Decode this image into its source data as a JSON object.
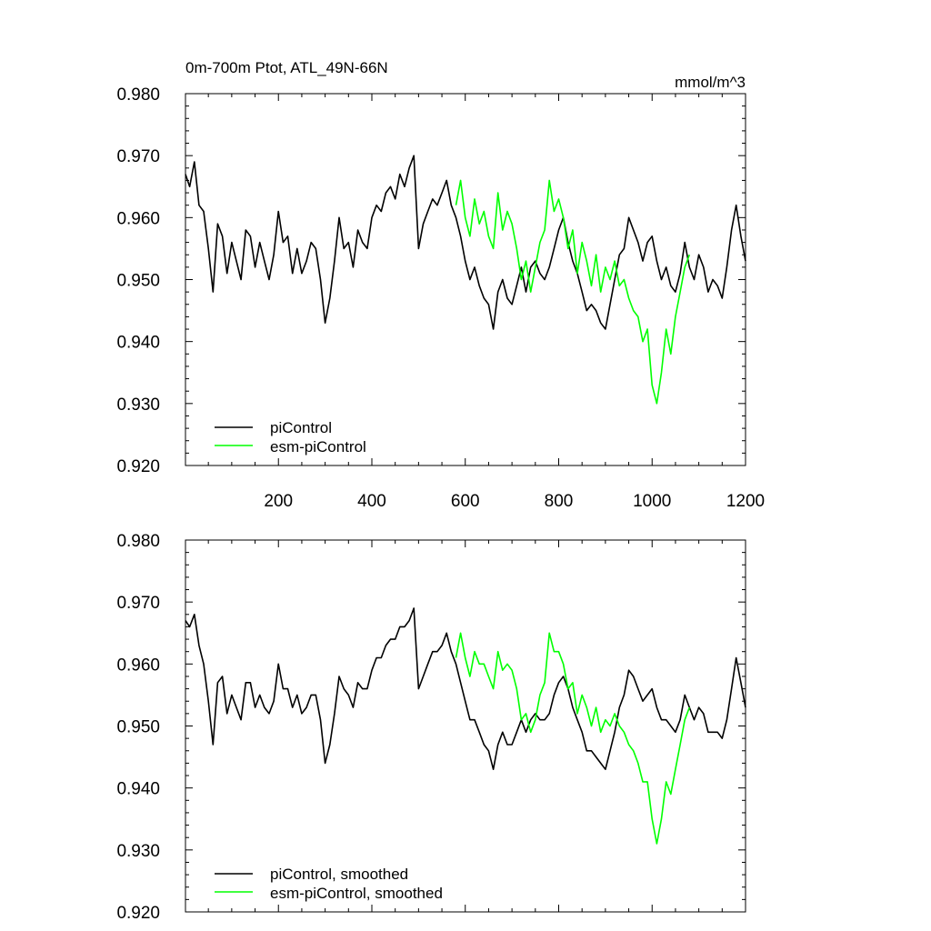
{
  "chart_data": [
    {
      "type": "line",
      "title_left": "0m-700m Ptot, ATL_49N-66N",
      "title_right": "mmol/m^3",
      "xlim": [
        1,
        1200
      ],
      "ylim": [
        0.92,
        0.98
      ],
      "xticks": [
        200,
        400,
        600,
        800,
        1000,
        1200
      ],
      "xtick_labels": [
        "200",
        "400",
        "600",
        "800",
        "1000",
        "1200"
      ],
      "yticks": [
        0.92,
        0.93,
        0.94,
        0.95,
        0.96,
        0.97,
        0.98
      ],
      "ytick_labels": [
        "0.920",
        "0.930",
        "0.940",
        "0.950",
        "0.960",
        "0.970",
        "0.980"
      ],
      "series": [
        {
          "name": "piControl",
          "color": "#000000",
          "x": [
            1,
            10,
            20,
            30,
            40,
            50,
            60,
            70,
            80,
            90,
            100,
            110,
            120,
            130,
            140,
            150,
            160,
            170,
            180,
            190,
            200,
            210,
            220,
            230,
            240,
            250,
            260,
            270,
            280,
            290,
            300,
            310,
            320,
            330,
            340,
            350,
            360,
            370,
            380,
            390,
            400,
            410,
            420,
            430,
            440,
            450,
            460,
            470,
            480,
            490,
            500,
            510,
            520,
            530,
            540,
            550,
            560,
            570,
            580,
            590,
            600,
            610,
            620,
            630,
            640,
            650,
            660,
            670,
            680,
            690,
            700,
            710,
            720,
            730,
            740,
            750,
            760,
            770,
            780,
            790,
            800,
            810,
            820,
            830,
            840,
            850,
            860,
            870,
            880,
            890,
            900,
            910,
            920,
            930,
            940,
            950,
            960,
            970,
            980,
            990,
            1000,
            1010,
            1020,
            1030,
            1040,
            1050,
            1060,
            1070,
            1080,
            1090,
            1100,
            1110,
            1120,
            1130,
            1140,
            1150,
            1160,
            1170,
            1180,
            1190,
            1200
          ],
          "y": [
            0.967,
            0.965,
            0.969,
            0.962,
            0.961,
            0.955,
            0.948,
            0.959,
            0.957,
            0.951,
            0.956,
            0.953,
            0.95,
            0.958,
            0.957,
            0.952,
            0.956,
            0.953,
            0.95,
            0.954,
            0.961,
            0.956,
            0.957,
            0.951,
            0.955,
            0.951,
            0.953,
            0.956,
            0.955,
            0.95,
            0.943,
            0.947,
            0.953,
            0.96,
            0.955,
            0.956,
            0.952,
            0.958,
            0.956,
            0.955,
            0.96,
            0.962,
            0.961,
            0.964,
            0.965,
            0.963,
            0.967,
            0.965,
            0.968,
            0.97,
            0.955,
            0.959,
            0.961,
            0.963,
            0.962,
            0.964,
            0.966,
            0.962,
            0.96,
            0.957,
            0.953,
            0.95,
            0.952,
            0.949,
            0.947,
            0.946,
            0.942,
            0.948,
            0.95,
            0.947,
            0.946,
            0.949,
            0.952,
            0.948,
            0.952,
            0.953,
            0.951,
            0.95,
            0.952,
            0.955,
            0.958,
            0.96,
            0.956,
            0.953,
            0.951,
            0.948,
            0.945,
            0.946,
            0.945,
            0.943,
            0.942,
            0.946,
            0.95,
            0.954,
            0.955,
            0.96,
            0.958,
            0.956,
            0.953,
            0.956,
            0.957,
            0.953,
            0.95,
            0.952,
            0.949,
            0.948,
            0.951,
            0.956,
            0.952,
            0.95,
            0.954,
            0.952,
            0.948,
            0.95,
            0.949,
            0.947,
            0.952,
            0.958,
            0.962,
            0.957,
            0.953
          ],
          "smoothed_y": [
            0.967,
            0.966,
            0.968,
            0.963,
            0.96,
            0.954,
            0.947,
            0.957,
            0.958,
            0.952,
            0.955,
            0.953,
            0.951,
            0.957,
            0.957,
            0.953,
            0.955,
            0.953,
            0.952,
            0.954,
            0.96,
            0.956,
            0.956,
            0.953,
            0.955,
            0.952,
            0.953,
            0.955,
            0.955,
            0.951,
            0.944,
            0.947,
            0.952,
            0.958,
            0.956,
            0.955,
            0.953,
            0.957,
            0.956,
            0.956,
            0.959,
            0.961,
            0.961,
            0.963,
            0.964,
            0.964,
            0.966,
            0.966,
            0.967,
            0.969,
            0.956,
            0.958,
            0.96,
            0.962,
            0.962,
            0.963,
            0.965,
            0.962,
            0.96,
            0.957,
            0.954,
            0.951,
            0.951,
            0.949,
            0.947,
            0.946,
            0.943,
            0.947,
            0.949,
            0.947,
            0.947,
            0.949,
            0.951,
            0.949,
            0.951,
            0.952,
            0.951,
            0.951,
            0.952,
            0.955,
            0.957,
            0.958,
            0.956,
            0.953,
            0.951,
            0.949,
            0.946,
            0.946,
            0.945,
            0.944,
            0.943,
            0.946,
            0.949,
            0.953,
            0.955,
            0.959,
            0.958,
            0.956,
            0.954,
            0.955,
            0.956,
            0.953,
            0.951,
            0.951,
            0.95,
            0.949,
            0.951,
            0.955,
            0.953,
            0.951,
            0.953,
            0.952,
            0.949,
            0.949,
            0.949,
            0.948,
            0.951,
            0.956,
            0.961,
            0.957,
            0.953
          ]
        },
        {
          "name": "esm-piControl",
          "color": "#00ff00",
          "x": [
            580,
            590,
            600,
            610,
            620,
            630,
            640,
            650,
            660,
            670,
            680,
            690,
            700,
            710,
            720,
            730,
            740,
            750,
            760,
            770,
            780,
            790,
            800,
            810,
            820,
            830,
            840,
            850,
            860,
            870,
            880,
            890,
            900,
            910,
            920,
            930,
            940,
            950,
            960,
            970,
            980,
            990,
            1000,
            1010,
            1020,
            1030,
            1040,
            1050,
            1060,
            1070,
            1080
          ],
          "y": [
            0.962,
            0.966,
            0.96,
            0.957,
            0.963,
            0.959,
            0.961,
            0.957,
            0.955,
            0.964,
            0.958,
            0.961,
            0.959,
            0.955,
            0.95,
            0.953,
            0.948,
            0.952,
            0.956,
            0.958,
            0.966,
            0.961,
            0.963,
            0.96,
            0.955,
            0.958,
            0.951,
            0.956,
            0.953,
            0.949,
            0.954,
            0.948,
            0.952,
            0.95,
            0.953,
            0.949,
            0.95,
            0.947,
            0.945,
            0.944,
            0.94,
            0.942,
            0.933,
            0.93,
            0.935,
            0.942,
            0.938,
            0.944,
            0.948,
            0.952,
            0.954
          ],
          "smoothed_y": [
            0.961,
            0.965,
            0.961,
            0.958,
            0.962,
            0.96,
            0.96,
            0.958,
            0.956,
            0.962,
            0.959,
            0.96,
            0.959,
            0.956,
            0.951,
            0.952,
            0.949,
            0.951,
            0.955,
            0.957,
            0.965,
            0.962,
            0.962,
            0.96,
            0.956,
            0.957,
            0.952,
            0.955,
            0.953,
            0.95,
            0.953,
            0.949,
            0.951,
            0.95,
            0.952,
            0.95,
            0.949,
            0.947,
            0.946,
            0.944,
            0.941,
            0.941,
            0.935,
            0.931,
            0.935,
            0.941,
            0.939,
            0.943,
            0.947,
            0.951,
            0.953
          ]
        }
      ],
      "legend": {
        "placement": "bottom-left",
        "entries": [
          "piControl",
          "esm-piControl"
        ]
      }
    },
    {
      "type": "line",
      "title_left": "",
      "title_right": "",
      "xlim": [
        1,
        1200
      ],
      "ylim": [
        0.92,
        0.98
      ],
      "xticks": [
        200,
        400,
        600,
        800,
        1000,
        1200
      ],
      "yticks": [
        0.92,
        0.93,
        0.94,
        0.95,
        0.96,
        0.97,
        0.98
      ],
      "ytick_labels": [
        "0.920",
        "0.930",
        "0.940",
        "0.950",
        "0.960",
        "0.970",
        "0.980"
      ],
      "series_source": "smoothed_y",
      "legend": {
        "placement": "bottom-left",
        "entries": [
          "piControl, smoothed",
          "esm-piControl, smoothed"
        ]
      }
    }
  ]
}
